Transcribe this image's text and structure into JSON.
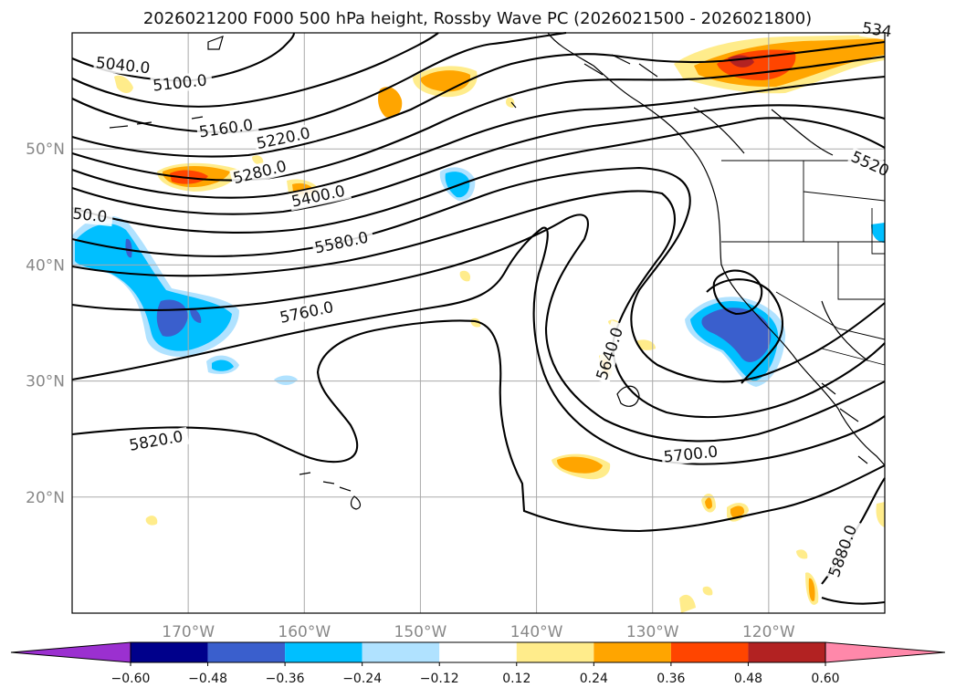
{
  "title": "2026021200 F000 500 hPa height, Rossby Wave PC (2026021500 - 2026021800)",
  "map": {
    "projection": "equirectangular",
    "lon_range": [
      -180,
      -110
    ],
    "lat_range": [
      10,
      60
    ],
    "gridlines": true,
    "coastlines": true,
    "state_borders": true,
    "lat_ticks": [
      {
        "value": 20,
        "label": "20°N"
      },
      {
        "value": 30,
        "label": "30°N"
      },
      {
        "value": 40,
        "label": "40°N"
      },
      {
        "value": 50,
        "label": "50°N"
      }
    ],
    "lon_ticks": [
      {
        "value": -170,
        "label": "170°W"
      },
      {
        "value": -160,
        "label": "160°W"
      },
      {
        "value": -150,
        "label": "150°W"
      },
      {
        "value": -140,
        "label": "140°W"
      },
      {
        "value": -130,
        "label": "130°W"
      },
      {
        "value": -120,
        "label": "120°W"
      }
    ]
  },
  "height_contours": {
    "color": "#000000",
    "labels": [
      {
        "text": "5040.0",
        "lon": -178,
        "lat": 57
      },
      {
        "text": "5100.0",
        "lon": -173,
        "lat": 55
      },
      {
        "text": "5160.0",
        "lon": -169,
        "lat": 51
      },
      {
        "text": "5220.0",
        "lon": -164,
        "lat": 50
      },
      {
        "text": "5280.0",
        "lon": -166,
        "lat": 47
      },
      {
        "text": "5400.0",
        "lon": -161,
        "lat": 45
      },
      {
        "text": "5580.0",
        "lon": -159,
        "lat": 41
      },
      {
        "text": "5760.0",
        "lon": -162,
        "lat": 35
      },
      {
        "text": "5820.0",
        "lon": -175,
        "lat": 24
      },
      {
        "text": "5640.0",
        "lon": -134,
        "lat": 30
      },
      {
        "text": "5700.0",
        "lon": -129,
        "lat": 23
      },
      {
        "text": "5880.0",
        "lon": -114,
        "lat": 13
      },
      {
        "text": "5520",
        "lon": -113,
        "lat": 49
      },
      {
        "text": "534",
        "lon": -112,
        "lat": 60
      },
      {
        "text": "50.0",
        "lon": -180,
        "lat": 44
      }
    ]
  },
  "colorbar": {
    "ticks": [
      "−0.60",
      "−0.48",
      "−0.36",
      "−0.24",
      "−0.12",
      "0.12",
      "0.24",
      "0.36",
      "0.48",
      "0.60"
    ],
    "levels": [
      -0.6,
      -0.48,
      -0.36,
      -0.24,
      -0.12,
      0.12,
      0.24,
      0.36,
      0.48,
      0.6
    ],
    "colors": [
      "#9b30d0",
      "#00008b",
      "#3a5fcd",
      "#00bfff",
      "#b0e2ff",
      "#ffffff",
      "#ffec8b",
      "#ffa500",
      "#ff4500",
      "#b22222",
      "#ff88aa"
    ]
  },
  "anomaly_regions": [
    {
      "sign": "positive",
      "max_level": 0.48,
      "lon": -124,
      "lat": 56
    },
    {
      "sign": "positive",
      "max_level": 0.36,
      "lon": -169,
      "lat": 47
    },
    {
      "sign": "positive",
      "max_level": 0.24,
      "lon": -148,
      "lat": 56
    },
    {
      "sign": "positive",
      "max_level": 0.24,
      "lon": -137,
      "lat": 23
    },
    {
      "sign": "negative",
      "max_level": -0.48,
      "lon": -121,
      "lat": 34
    },
    {
      "sign": "negative",
      "max_level": -0.48,
      "lon": -173,
      "lat": 39
    },
    {
      "sign": "negative",
      "max_level": -0.36,
      "lon": -146,
      "lat": 47
    }
  ]
}
